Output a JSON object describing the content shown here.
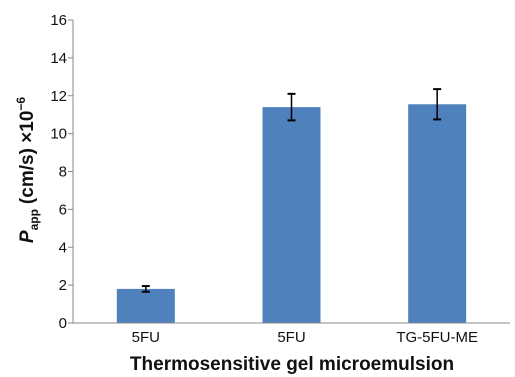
{
  "chart_data": {
    "type": "bar",
    "categories": [
      "5FU",
      "5FU",
      "TG-5FU-ME"
    ],
    "values": [
      1.8,
      11.4,
      11.55
    ],
    "error": [
      0.15,
      0.7,
      0.8
    ],
    "xlabel": "Thermosensitive gel microemulsion",
    "ylabel": {
      "symbol": "P",
      "subscript": "app",
      "unit": "(cm/s) ×10",
      "exponent": "−6"
    },
    "ylim": [
      0,
      16
    ],
    "yticks": [
      0,
      2,
      4,
      6,
      8,
      10,
      12,
      14,
      16
    ],
    "grid": false,
    "legend": "none",
    "colors": {
      "bar": "#4f81bd",
      "error_bar": "#000000",
      "axis": "#888888"
    }
  }
}
